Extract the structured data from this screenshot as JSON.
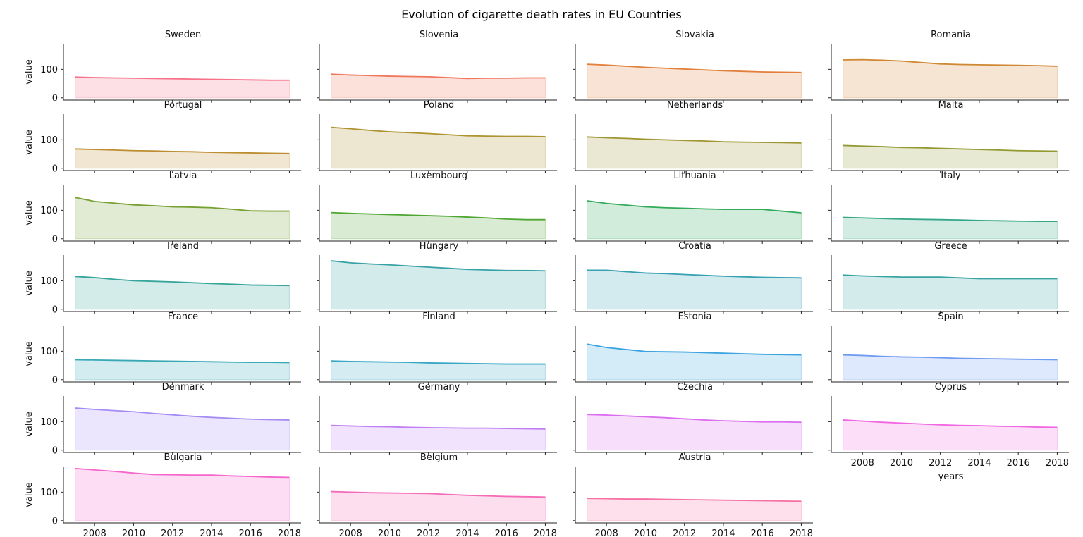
{
  "chart_data": {
    "type": "area",
    "title": "Evolution of cigarette death rates in EU Countries",
    "xlabel": "years",
    "ylabel": "value",
    "x": [
      2007,
      2008,
      2009,
      2010,
      2011,
      2012,
      2013,
      2014,
      2015,
      2016,
      2017,
      2018
    ],
    "xticks": [
      2008,
      2010,
      2012,
      2014,
      2016,
      2018
    ],
    "yticks": [
      0,
      100
    ],
    "ylim": [
      -8,
      190
    ],
    "grid": false,
    "layout": {
      "rows": 7,
      "cols": 4
    },
    "series": [
      {
        "name": "Sweden",
        "color": "#f77189",
        "values": [
          73,
          71,
          70,
          69,
          68,
          67,
          66,
          65,
          64,
          63,
          62,
          62
        ]
      },
      {
        "name": "Slovenia",
        "color": "#f0765d",
        "values": [
          83,
          80,
          78,
          76,
          75,
          74,
          71,
          68,
          69,
          69,
          70,
          70
        ]
      },
      {
        "name": "Slovakia",
        "color": "#e2803b",
        "values": [
          118,
          115,
          111,
          107,
          104,
          101,
          98,
          95,
          93,
          91,
          90,
          89
        ]
      },
      {
        "name": "Romania",
        "color": "#d08832",
        "values": [
          133,
          134,
          132,
          129,
          124,
          119,
          117,
          116,
          115,
          114,
          113,
          111
        ]
      },
      {
        "name": "Portugal",
        "color": "#bd8e31",
        "values": [
          68,
          66,
          64,
          62,
          61,
          59,
          58,
          56,
          55,
          54,
          53,
          52
        ]
      },
      {
        "name": "Poland",
        "color": "#ae9331",
        "values": [
          144,
          139,
          133,
          128,
          125,
          122,
          118,
          114,
          113,
          112,
          112,
          111
        ]
      },
      {
        "name": "Netherlands",
        "color": "#a09631",
        "values": [
          110,
          107,
          105,
          102,
          100,
          98,
          96,
          93,
          92,
          91,
          90,
          89
        ]
      },
      {
        "name": "Malta",
        "color": "#929a31",
        "values": [
          80,
          78,
          76,
          73,
          72,
          70,
          68,
          66,
          64,
          62,
          61,
          60
        ]
      },
      {
        "name": "Latvia",
        "color": "#77a032",
        "values": [
          145,
          131,
          125,
          119,
          116,
          112,
          111,
          109,
          104,
          98,
          97,
          97
        ]
      },
      {
        "name": "Luxembourg",
        "color": "#50a632",
        "values": [
          92,
          89,
          87,
          85,
          83,
          81,
          79,
          76,
          73,
          69,
          67,
          67
        ]
      },
      {
        "name": "Lithuania",
        "color": "#33aa5a",
        "values": [
          133,
          124,
          118,
          112,
          109,
          107,
          105,
          103,
          103,
          103,
          97,
          91
        ]
      },
      {
        "name": "Italy",
        "color": "#34a786",
        "values": [
          75,
          73,
          71,
          69,
          68,
          67,
          66,
          64,
          63,
          62,
          61,
          61
        ]
      },
      {
        "name": "Ireland",
        "color": "#35a49a",
        "values": [
          115,
          111,
          105,
          100,
          98,
          96,
          93,
          90,
          88,
          85,
          84,
          83
        ]
      },
      {
        "name": "Hungary",
        "color": "#36a2a6",
        "values": [
          170,
          163,
          159,
          156,
          152,
          148,
          144,
          140,
          138,
          136,
          136,
          135
        ]
      },
      {
        "name": "Croatia",
        "color": "#37a0b2",
        "values": [
          137,
          137,
          132,
          127,
          125,
          122,
          119,
          116,
          114,
          112,
          111,
          110
        ]
      },
      {
        "name": "Greece",
        "color": "#38a3a4",
        "values": [
          120,
          117,
          115,
          113,
          113,
          113,
          110,
          107,
          107,
          107,
          107,
          107
        ]
      },
      {
        "name": "France",
        "color": "#38a8b5",
        "values": [
          70,
          69,
          68,
          67,
          66,
          65,
          64,
          63,
          62,
          61,
          61,
          60
        ]
      },
      {
        "name": "Finland",
        "color": "#39a7c4",
        "values": [
          66,
          64,
          63,
          62,
          61,
          59,
          58,
          57,
          56,
          55,
          55,
          55
        ]
      },
      {
        "name": "Estonia",
        "color": "#3ba3e0",
        "values": [
          125,
          113,
          106,
          99,
          98,
          97,
          95,
          93,
          91,
          89,
          88,
          87
        ]
      },
      {
        "name": "Spain",
        "color": "#6e9af4",
        "values": [
          87,
          85,
          82,
          80,
          79,
          77,
          75,
          74,
          73,
          72,
          71,
          70
        ]
      },
      {
        "name": "Denmark",
        "color": "#a48cf4",
        "values": [
          148,
          143,
          139,
          135,
          129,
          124,
          119,
          115,
          112,
          109,
          107,
          106
        ]
      },
      {
        "name": "Germany",
        "color": "#bf7ef4",
        "values": [
          87,
          85,
          83,
          82,
          80,
          79,
          78,
          77,
          77,
          76,
          75,
          74
        ]
      },
      {
        "name": "Czechia",
        "color": "#dc6ef0",
        "values": [
          125,
          123,
          120,
          117,
          114,
          110,
          106,
          103,
          101,
          99,
          99,
          98
        ]
      },
      {
        "name": "Cyprus",
        "color": "#f167e2",
        "values": [
          106,
          102,
          98,
          95,
          92,
          89,
          87,
          86,
          84,
          83,
          81,
          80
        ]
      },
      {
        "name": "Bulgaria",
        "color": "#f565cc",
        "values": [
          183,
          178,
          173,
          167,
          162,
          161,
          160,
          160,
          157,
          155,
          153,
          152
        ]
      },
      {
        "name": "Belgium",
        "color": "#f66bb6",
        "values": [
          102,
          100,
          98,
          97,
          96,
          95,
          92,
          89,
          87,
          85,
          84,
          83
        ]
      },
      {
        "name": "Austria",
        "color": "#f670a3",
        "values": [
          78,
          77,
          76,
          76,
          75,
          74,
          73,
          72,
          71,
          70,
          69,
          68
        ]
      }
    ]
  }
}
